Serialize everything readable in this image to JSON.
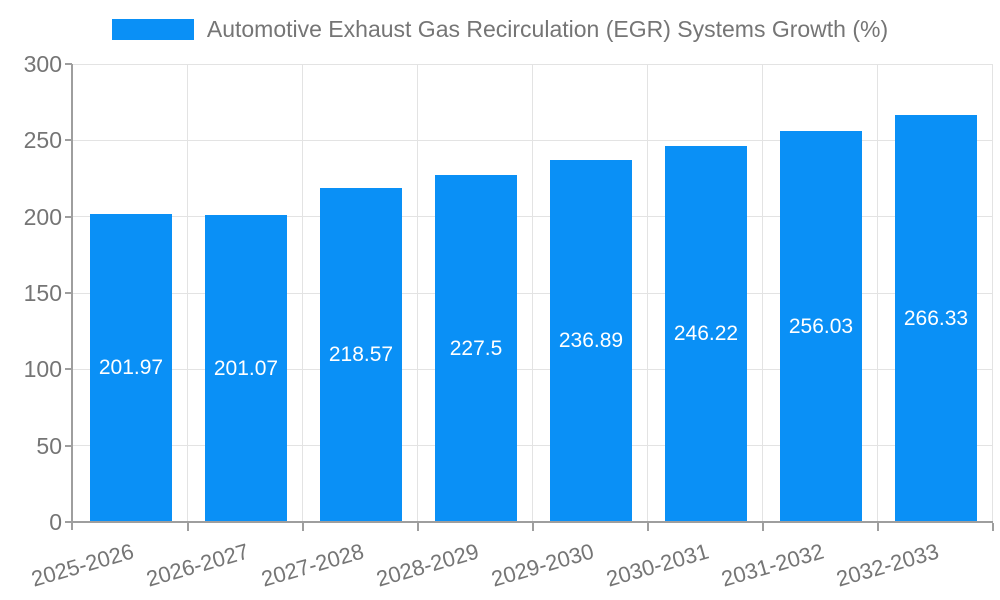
{
  "colors": {
    "background": "#ffffff",
    "bar": "#0a90f6",
    "bar_value_text": "#ffffff",
    "axis": "#9e9e9e",
    "grid": "#e3e3e3",
    "text": "#757575"
  },
  "legend": {
    "items": [
      {
        "label": "Automotive Exhaust Gas Recirculation (EGR) Systems Growth (%)",
        "swatch_color": "#0a90f6"
      }
    ]
  },
  "chart_data": {
    "type": "bar",
    "title": "Automotive Exhaust Gas Recirculation (EGR) Systems Growth (%)",
    "categories": [
      "2025-2026",
      "2026-2027",
      "2027-2028",
      "2028-2029",
      "2029-2030",
      "2030-2031",
      "2031-2032",
      "2032-2033"
    ],
    "values": [
      201.97,
      201.07,
      218.57,
      227.5,
      236.89,
      246.22,
      256.03,
      266.33
    ],
    "value_labels": [
      "201.97",
      "201.07",
      "218.57",
      "227.5",
      "236.89",
      "246.22",
      "256.03",
      "266.33"
    ],
    "xlabel": "",
    "ylabel": "",
    "ylim": [
      0,
      300
    ],
    "yticks": [
      0,
      50,
      100,
      150,
      200,
      250,
      300
    ],
    "grid": true,
    "legend_position": "top",
    "x_label_rotation_deg": -16
  }
}
